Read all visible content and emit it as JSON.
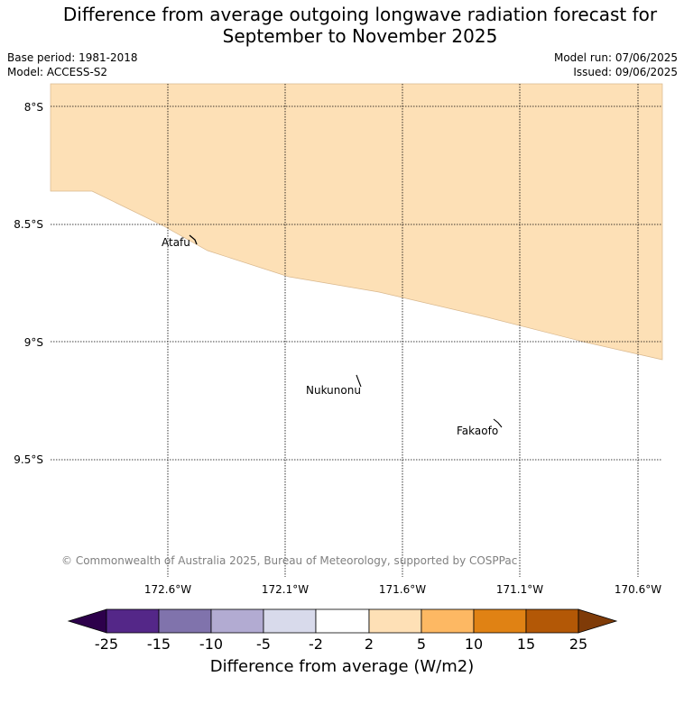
{
  "title_line1": "Difference from average outgoing longwave radiation forecast for",
  "title_line2": "September to November 2025",
  "base_period": "Base period: 1981-2018",
  "model": "Model: ACCESS-S2",
  "model_run": "Model run: 07/06/2025",
  "issued": "Issued: 09/06/2025",
  "copyright": "© Commonwealth of Australia 2025, Bureau of Meteorology, supported by COSPPac",
  "map": {
    "lat_labels": [
      "8°S",
      "8.5°S",
      "9°S",
      "9.5°S"
    ],
    "lon_labels": [
      "172.6°W",
      "172.1°W",
      "171.6°W",
      "171.1°W",
      "170.6°W"
    ],
    "places": [
      "Atafu",
      "Nukunonu",
      "Fakaofo"
    ],
    "anomaly_region_color": "#fde0b6"
  },
  "colorbar": {
    "label": "Difference from average (W/m2)",
    "ticks": [
      "-25",
      "-15",
      "-10",
      "-5",
      "-2",
      "2",
      "5",
      "10",
      "15",
      "25"
    ],
    "colors": [
      "#2d004b",
      "#542788",
      "#8073ac",
      "#b2abd2",
      "#d8daeb",
      "#ffffff",
      "#fee0b6",
      "#fdb863",
      "#e08214",
      "#b35806",
      "#7f3b08"
    ]
  }
}
